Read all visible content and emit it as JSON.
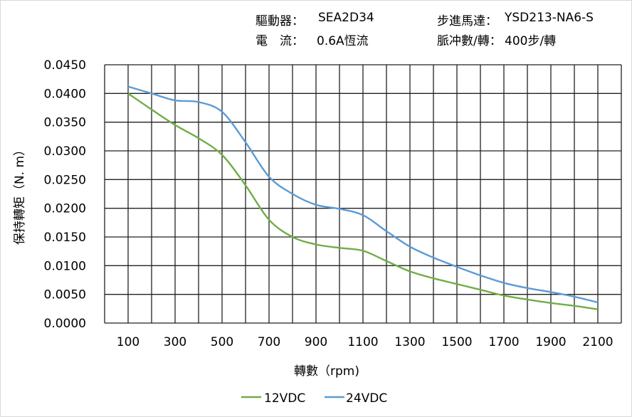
{
  "header": {
    "driver_label": "驅動器：",
    "driver_value": "SEA2D34",
    "motor_label": "步進馬達：",
    "motor_value": "YSD213-NA6-S",
    "current_label": "電　流：",
    "current_value": "0.6A恆流",
    "pulses_label": "脈冲數/轉：",
    "pulses_value": "400步/轉"
  },
  "chart_data": {
    "type": "line",
    "title": "",
    "xlabel": "轉數（rpm)",
    "ylabel": "保持轉矩（N. m）",
    "xlim": [
      0,
      2200
    ],
    "ylim": [
      0,
      0.045
    ],
    "grid": true,
    "legend_position": "bottom",
    "x_ticks": [
      "100",
      "300",
      "500",
      "700",
      "900",
      "1100",
      "1300",
      "1500",
      "1700",
      "1900",
      "2100"
    ],
    "y_ticks": [
      "0.0000",
      "0.0050",
      "0.0100",
      "0.0150",
      "0.0200",
      "0.0250",
      "0.0300",
      "0.0350",
      "0.0400",
      "0.0450"
    ],
    "x": [
      100,
      200,
      300,
      400,
      500,
      600,
      700,
      800,
      900,
      1000,
      1100,
      1200,
      1300,
      1400,
      1500,
      1600,
      1700,
      1800,
      1900,
      2000,
      2100
    ],
    "series": [
      {
        "name": "12VDC",
        "color": "#70ad47",
        "values": [
          0.04,
          0.0372,
          0.0345,
          0.0322,
          0.0293,
          0.024,
          0.018,
          0.015,
          0.0137,
          0.0131,
          0.0126,
          0.0108,
          0.009,
          0.0078,
          0.0068,
          0.0058,
          0.0048,
          0.0041,
          0.0035,
          0.003,
          0.0024
        ]
      },
      {
        "name": "24VDC",
        "color": "#5b9bd5",
        "values": [
          0.0412,
          0.04,
          0.0388,
          0.0385,
          0.0368,
          0.0315,
          0.0255,
          0.0225,
          0.0206,
          0.0199,
          0.0188,
          0.016,
          0.0133,
          0.0114,
          0.0098,
          0.0083,
          0.007,
          0.0061,
          0.0054,
          0.0046,
          0.0036
        ]
      }
    ]
  }
}
